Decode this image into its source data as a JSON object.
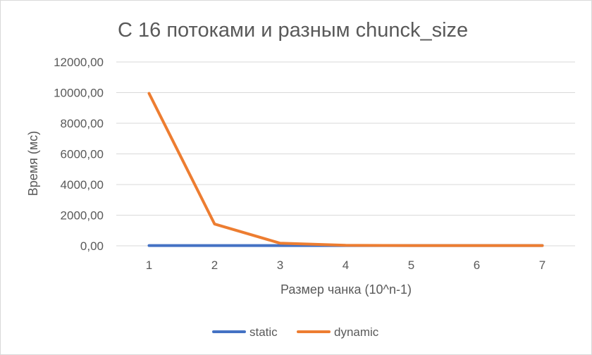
{
  "chart_data": {
    "type": "line",
    "title": "С 16 потоками и разным chunck_size",
    "xlabel": "Размер чанка (10^n-1)",
    "ylabel": "Время (мс)",
    "categories": [
      "1",
      "2",
      "3",
      "4",
      "5",
      "6",
      "7"
    ],
    "ylim": [
      0,
      12000
    ],
    "yticks": [
      0,
      2000,
      4000,
      6000,
      8000,
      10000,
      12000
    ],
    "ytick_labels": [
      "0,00",
      "2000,00",
      "4000,00",
      "6000,00",
      "8000,00",
      "10000,00",
      "12000,00"
    ],
    "grid": true,
    "legend_position": "bottom",
    "series": [
      {
        "name": "static",
        "color": "#4472c4",
        "values": [
          20,
          20,
          20,
          20,
          20,
          20,
          20
        ]
      },
      {
        "name": "dynamic",
        "color": "#ed7d31",
        "values": [
          9950,
          1420,
          170,
          30,
          20,
          20,
          20
        ]
      }
    ]
  }
}
